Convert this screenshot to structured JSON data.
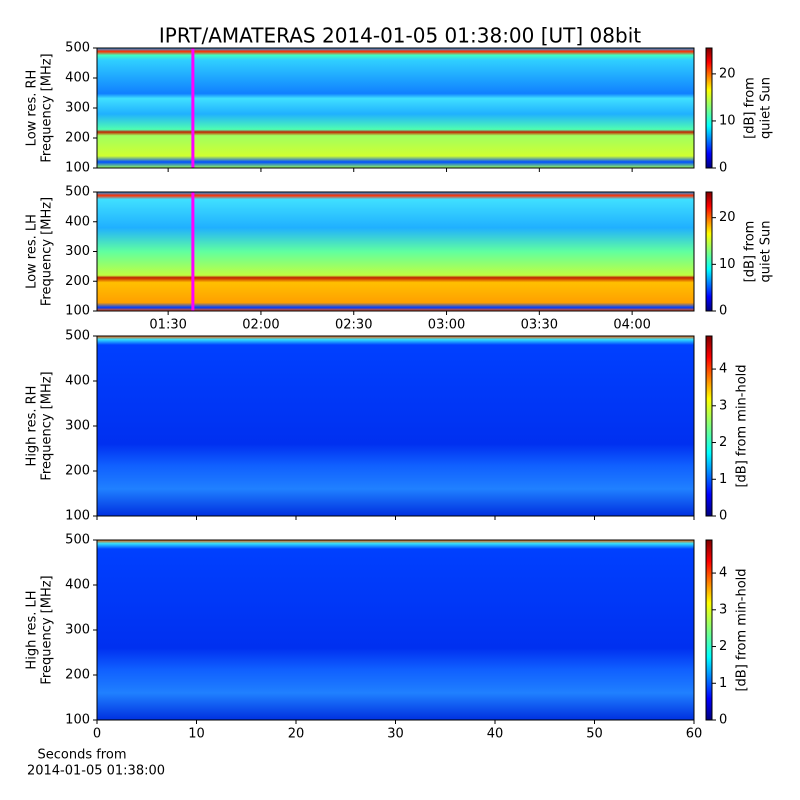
{
  "chart_data": [
    {
      "type": "heatmap",
      "title": "IPRT/AMATERAS 2014-01-05 01:38:00 [UT]   08bit",
      "ylabel": [
        "Low res. RH",
        "Frequency [MHz]"
      ],
      "ylim": [
        100,
        500
      ],
      "yticks": [
        100,
        200,
        300,
        400,
        500
      ],
      "xlim": [
        67,
        260
      ],
      "marker_x": 98,
      "marker_color": "#ff00ff",
      "colormap": "jet",
      "clim": [
        0,
        25.5
      ],
      "cticks": [
        0,
        10,
        20
      ],
      "clabel": [
        "[dB] from",
        "quiet Sun"
      ]
    },
    {
      "type": "heatmap",
      "ylabel": [
        "Low res. LH",
        "Frequency [MHz]"
      ],
      "ylim": [
        100,
        500
      ],
      "yticks": [
        100,
        200,
        300,
        400,
        500
      ],
      "xlim": [
        67,
        260
      ],
      "xticks": [
        {
          "value": 90,
          "label": "01:30"
        },
        {
          "value": 120,
          "label": "02:00"
        },
        {
          "value": 150,
          "label": "02:30"
        },
        {
          "value": 180,
          "label": "03:00"
        },
        {
          "value": 210,
          "label": "03:30"
        },
        {
          "value": 240,
          "label": "04:00"
        }
      ],
      "marker_x": 98,
      "marker_color": "#ff00ff",
      "colormap": "jet",
      "clim": [
        0,
        25.5
      ],
      "cticks": [
        0,
        10,
        20
      ],
      "clabel": [
        "[dB] from",
        "quiet Sun"
      ]
    },
    {
      "type": "heatmap",
      "ylabel": [
        "High res. RH",
        "Frequency [MHz]"
      ],
      "ylim": [
        100,
        500
      ],
      "yticks": [
        100,
        200,
        300,
        400,
        500
      ],
      "xlim": [
        0,
        60
      ],
      "colormap": "jet",
      "clim": [
        0,
        4.9
      ],
      "cticks": [
        0,
        1,
        2,
        3,
        4
      ],
      "clabel": [
        "[dB] from min-hold"
      ]
    },
    {
      "type": "heatmap",
      "ylabel": [
        "High res. LH",
        "Frequency [MHz]"
      ],
      "ylim": [
        100,
        500
      ],
      "yticks": [
        100,
        200,
        300,
        400,
        500
      ],
      "xlim": [
        0,
        60
      ],
      "xticks": [
        0,
        10,
        20,
        30,
        40,
        50,
        60
      ],
      "xlabel": [
        "Seconds from",
        "2014-01-05 01:38:00"
      ],
      "colormap": "jet",
      "clim": [
        0,
        4.9
      ],
      "cticks": [
        0,
        1,
        2,
        3,
        4
      ],
      "clabel": [
        "[dB] from min-hold"
      ]
    }
  ]
}
